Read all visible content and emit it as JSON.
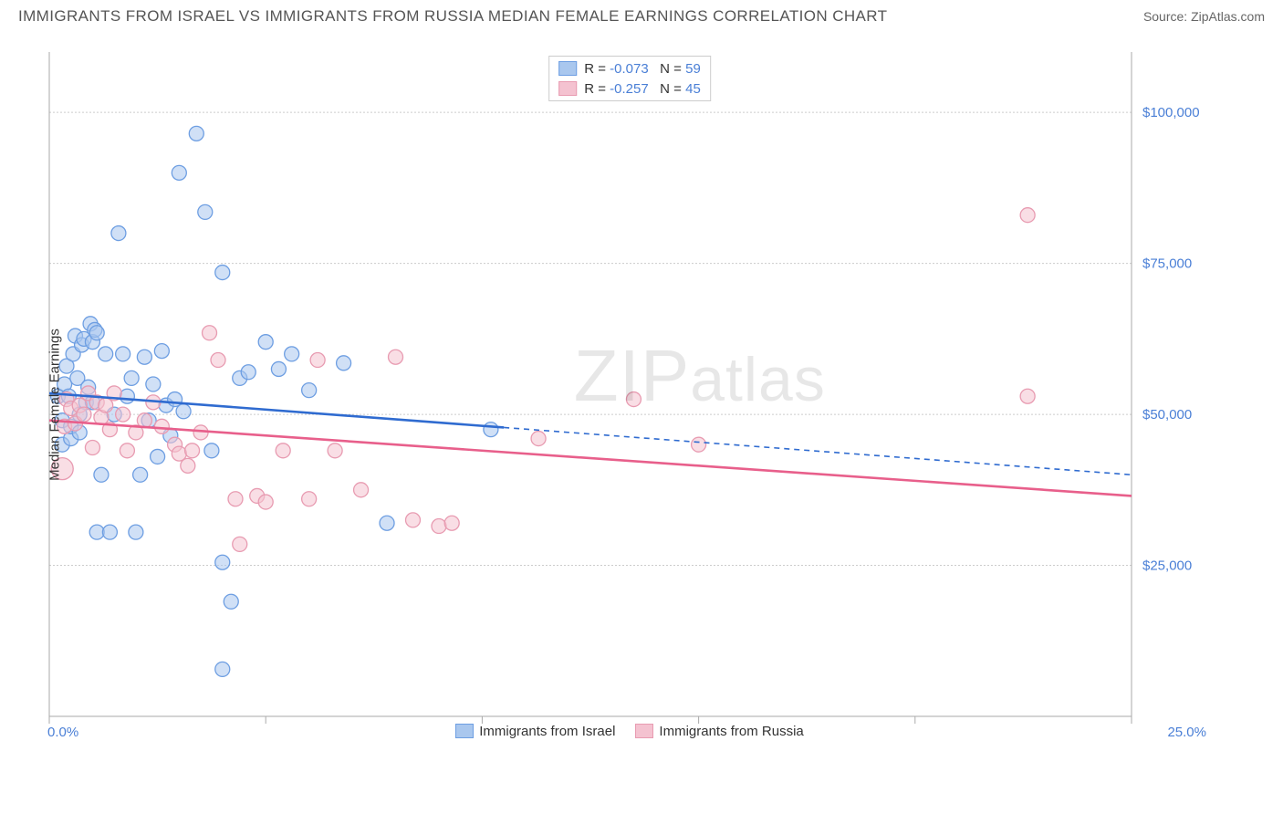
{
  "title": "IMMIGRANTS FROM ISRAEL VS IMMIGRANTS FROM RUSSIA MEDIAN FEMALE EARNINGS CORRELATION CHART",
  "source": "Source: ZipAtlas.com",
  "watermark": "ZIPatlas",
  "chart": {
    "type": "scatter",
    "y_axis_label": "Median Female Earnings",
    "background_color": "#ffffff",
    "grid_color": "#cccccc",
    "axis_color": "#aaaaaa",
    "xlim": [
      0,
      25
    ],
    "ylim": [
      0,
      110000
    ],
    "x_ticks_minor_step": 5,
    "x_tick_labels": {
      "min": "0.0%",
      "max": "25.0%"
    },
    "y_ticks": [
      {
        "v": 25000,
        "label": "$25,000"
      },
      {
        "v": 50000,
        "label": "$50,000"
      },
      {
        "v": 75000,
        "label": "$75,000"
      },
      {
        "v": 100000,
        "label": "$100,000"
      }
    ],
    "series": [
      {
        "name": "Immigrants from Israel",
        "stroke": "#6d9ee2",
        "fill": "#a9c7ee",
        "fill_opacity": 0.55,
        "line_color": "#2f6bd0",
        "marker_r": 8,
        "R": "-0.073",
        "N": "59",
        "trend": {
          "y_at_xmin": 53500,
          "y_at_xmax": 40000,
          "solid_until_x": 10.5
        },
        "points": [
          {
            "x": 0.2,
            "y": 53000
          },
          {
            "x": 0.3,
            "y": 49000
          },
          {
            "x": 0.3,
            "y": 45000
          },
          {
            "x": 0.35,
            "y": 55000
          },
          {
            "x": 0.4,
            "y": 58000
          },
          {
            "x": 0.45,
            "y": 53000
          },
          {
            "x": 0.5,
            "y": 46000
          },
          {
            "x": 0.5,
            "y": 48000
          },
          {
            "x": 0.55,
            "y": 60000
          },
          {
            "x": 0.6,
            "y": 63000
          },
          {
            "x": 0.65,
            "y": 56000
          },
          {
            "x": 0.7,
            "y": 50000
          },
          {
            "x": 0.7,
            "y": 47000
          },
          {
            "x": 0.75,
            "y": 61500
          },
          {
            "x": 0.8,
            "y": 62500
          },
          {
            "x": 0.85,
            "y": 52000
          },
          {
            "x": 0.9,
            "y": 54500
          },
          {
            "x": 0.95,
            "y": 65000
          },
          {
            "x": 1.0,
            "y": 62000
          },
          {
            "x": 1.0,
            "y": 52000
          },
          {
            "x": 1.05,
            "y": 64000
          },
          {
            "x": 1.1,
            "y": 30500
          },
          {
            "x": 1.1,
            "y": 63500
          },
          {
            "x": 1.2,
            "y": 40000
          },
          {
            "x": 1.3,
            "y": 60000
          },
          {
            "x": 1.4,
            "y": 30500
          },
          {
            "x": 1.5,
            "y": 50000
          },
          {
            "x": 1.6,
            "y": 80000
          },
          {
            "x": 1.7,
            "y": 60000
          },
          {
            "x": 1.8,
            "y": 53000
          },
          {
            "x": 1.9,
            "y": 56000
          },
          {
            "x": 2.0,
            "y": 30500
          },
          {
            "x": 2.1,
            "y": 40000
          },
          {
            "x": 2.2,
            "y": 59500
          },
          {
            "x": 2.3,
            "y": 49000
          },
          {
            "x": 2.4,
            "y": 55000
          },
          {
            "x": 2.5,
            "y": 43000
          },
          {
            "x": 2.6,
            "y": 60500
          },
          {
            "x": 2.7,
            "y": 51500
          },
          {
            "x": 2.8,
            "y": 46500
          },
          {
            "x": 2.9,
            "y": 52500
          },
          {
            "x": 3.0,
            "y": 90000
          },
          {
            "x": 3.1,
            "y": 50500
          },
          {
            "x": 3.4,
            "y": 96500
          },
          {
            "x": 3.6,
            "y": 83500
          },
          {
            "x": 3.75,
            "y": 44000
          },
          {
            "x": 4.0,
            "y": 73500
          },
          {
            "x": 4.0,
            "y": 25500
          },
          {
            "x": 4.0,
            "y": 7800
          },
          {
            "x": 4.2,
            "y": 19000
          },
          {
            "x": 4.4,
            "y": 56000
          },
          {
            "x": 4.6,
            "y": 57000
          },
          {
            "x": 5.0,
            "y": 62000
          },
          {
            "x": 5.3,
            "y": 57500
          },
          {
            "x": 5.6,
            "y": 60000
          },
          {
            "x": 6.0,
            "y": 54000
          },
          {
            "x": 6.8,
            "y": 58500
          },
          {
            "x": 7.8,
            "y": 32000
          },
          {
            "x": 10.2,
            "y": 47500
          }
        ]
      },
      {
        "name": "Immigrants from Russia",
        "stroke": "#e89bb1",
        "fill": "#f4c2d0",
        "fill_opacity": 0.55,
        "line_color": "#e85f8b",
        "marker_r": 8,
        "R": "-0.257",
        "N": "45",
        "trend": {
          "y_at_xmin": 49000,
          "y_at_xmax": 36500,
          "solid_until_x": 25
        },
        "points": [
          {
            "x": 0.3,
            "y": 41000,
            "r": 12
          },
          {
            "x": 0.35,
            "y": 48000
          },
          {
            "x": 0.4,
            "y": 52500
          },
          {
            "x": 0.5,
            "y": 51000
          },
          {
            "x": 0.6,
            "y": 48500
          },
          {
            "x": 0.7,
            "y": 51500
          },
          {
            "x": 0.8,
            "y": 50000
          },
          {
            "x": 0.9,
            "y": 53500
          },
          {
            "x": 1.0,
            "y": 44500
          },
          {
            "x": 1.1,
            "y": 52000
          },
          {
            "x": 1.2,
            "y": 49500
          },
          {
            "x": 1.3,
            "y": 51500
          },
          {
            "x": 1.4,
            "y": 47500
          },
          {
            "x": 1.5,
            "y": 53500
          },
          {
            "x": 1.7,
            "y": 50000
          },
          {
            "x": 1.8,
            "y": 44000
          },
          {
            "x": 2.0,
            "y": 47000
          },
          {
            "x": 2.2,
            "y": 49000
          },
          {
            "x": 2.4,
            "y": 52000
          },
          {
            "x": 2.6,
            "y": 48000
          },
          {
            "x": 2.9,
            "y": 45000
          },
          {
            "x": 3.0,
            "y": 43500
          },
          {
            "x": 3.2,
            "y": 41500
          },
          {
            "x": 3.3,
            "y": 44000
          },
          {
            "x": 3.5,
            "y": 47000
          },
          {
            "x": 3.7,
            "y": 63500
          },
          {
            "x": 3.9,
            "y": 59000
          },
          {
            "x": 4.3,
            "y": 36000
          },
          {
            "x": 4.4,
            "y": 28500
          },
          {
            "x": 4.8,
            "y": 36500
          },
          {
            "x": 5.0,
            "y": 35500
          },
          {
            "x": 5.4,
            "y": 44000
          },
          {
            "x": 6.0,
            "y": 36000
          },
          {
            "x": 6.2,
            "y": 59000
          },
          {
            "x": 6.6,
            "y": 44000
          },
          {
            "x": 7.2,
            "y": 37500
          },
          {
            "x": 8.0,
            "y": 59500
          },
          {
            "x": 8.4,
            "y": 32500
          },
          {
            "x": 9.0,
            "y": 31500
          },
          {
            "x": 9.3,
            "y": 32000
          },
          {
            "x": 11.3,
            "y": 46000
          },
          {
            "x": 13.5,
            "y": 52500
          },
          {
            "x": 15.0,
            "y": 45000
          },
          {
            "x": 22.6,
            "y": 83000
          },
          {
            "x": 22.6,
            "y": 53000
          }
        ]
      }
    ],
    "bottom_legend": [
      {
        "swatch_fill": "#a9c7ee",
        "swatch_stroke": "#6d9ee2",
        "label": "Immigrants from Israel"
      },
      {
        "swatch_fill": "#f4c2d0",
        "swatch_stroke": "#e89bb1",
        "label": "Immigrants from Russia"
      }
    ]
  }
}
